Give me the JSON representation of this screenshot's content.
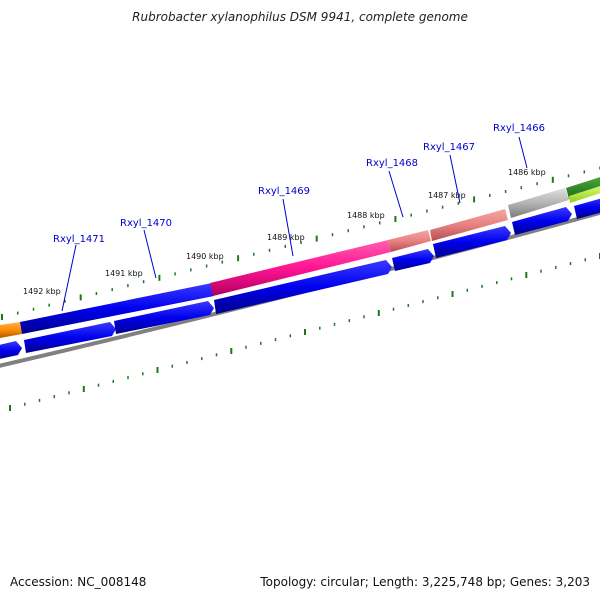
{
  "title": "Rubrobacter xylanophilus DSM 9941, complete genome",
  "footer": {
    "accession": "Accession: NC_008148",
    "topology": "Topology: circular; Length: 3,225,748 bp; Genes: 3,203"
  },
  "ruler": {
    "labels": [
      "1486 kbp",
      "1487 kbp",
      "1488 kbp",
      "1489 kbp",
      "1490 kbp",
      "1491 kbp",
      "1492 kbp"
    ]
  },
  "gene_labels": [
    "Rxyl_1466",
    "Rxyl_1467",
    "Rxyl_1468",
    "Rxyl_1469",
    "Rxyl_1470",
    "Rxyl_1471"
  ],
  "colors": {
    "cds_forward": "#0000ee",
    "cds_reverse": "#0000ee",
    "highlight_pink": "#ff1493",
    "highlight_salmon": "#f08080",
    "highlight_gray": "#b0b0b0",
    "highlight_orange": "#ff8c00",
    "highlight_green": "#2e8b22",
    "highlight_lime": "#adff2f",
    "backbone": "#808080",
    "tick": "#1a7a1a",
    "label": "#0000cc"
  }
}
